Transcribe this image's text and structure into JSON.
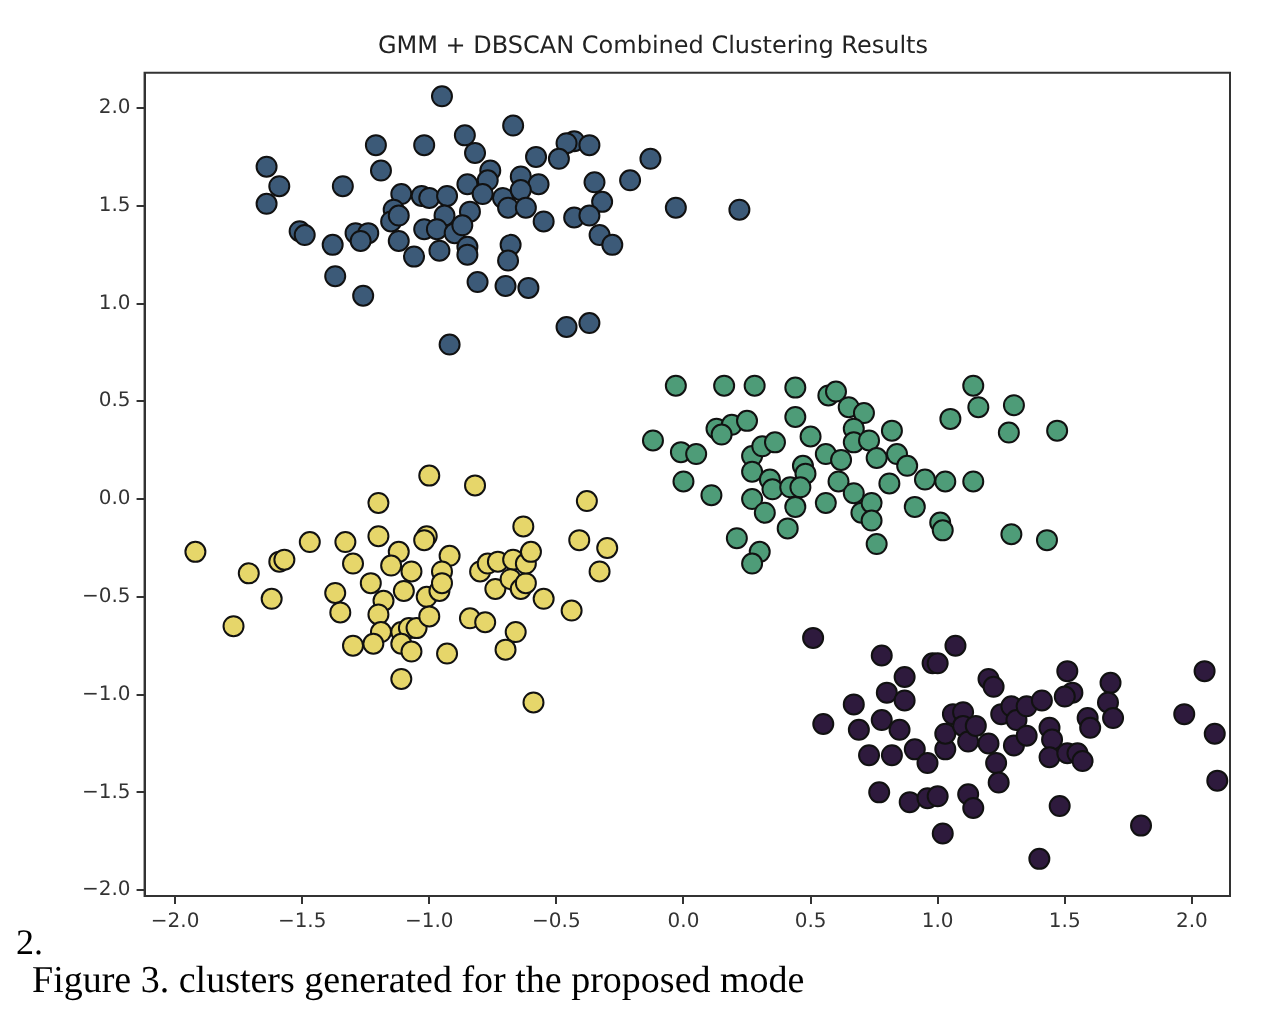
{
  "chart_data": {
    "type": "scatter",
    "title": "GMM + DBSCAN Combined Clustering Results",
    "marker": "circle",
    "grid": false,
    "xlim": [
      -2.12,
      2.15
    ],
    "ylim": [
      -2.03,
      2.18
    ],
    "xticks": [
      {
        "value": -2,
        "label": "−2.0"
      },
      {
        "value": -1.5,
        "label": "−1.5"
      },
      {
        "value": -1,
        "label": "−1.0"
      },
      {
        "value": -0.5,
        "label": "−0.5"
      },
      {
        "value": 0,
        "label": "0.0"
      },
      {
        "value": 0.5,
        "label": "0.5"
      },
      {
        "value": 1,
        "label": "1.0"
      },
      {
        "value": 1.5,
        "label": "1.5"
      },
      {
        "value": 2,
        "label": "2.0"
      }
    ],
    "yticks": [
      {
        "value": -2,
        "label": "−2.0"
      },
      {
        "value": -1.5,
        "label": "−1.5"
      },
      {
        "value": -1,
        "label": "−1.0"
      },
      {
        "value": -0.5,
        "label": "−0.5"
      },
      {
        "value": 0,
        "label": "0.0"
      },
      {
        "value": 0.5,
        "label": "0.5"
      },
      {
        "value": 1,
        "label": "1.0"
      },
      {
        "value": 1.5,
        "label": "1.5"
      },
      {
        "value": 2,
        "label": "2.0"
      }
    ],
    "series": [
      {
        "color": "#2e1a3d",
        "x": [
          0.51,
          0.55,
          0.78,
          0.87,
          0.67,
          0.69,
          0.8,
          0.87,
          0.78,
          0.85,
          0.73,
          0.82,
          0.91,
          0.96,
          0.98,
          1.0,
          1.07,
          0.77,
          0.89,
          0.96,
          1.0,
          1.02,
          1.03,
          1.03,
          1.06,
          1.1,
          1.1,
          1.12,
          1.15,
          1.2,
          1.22,
          1.2,
          1.23,
          1.25,
          1.29,
          1.31,
          1.3,
          1.35,
          1.35,
          1.41,
          1.44,
          1.45,
          1.44,
          1.51,
          1.53,
          1.5,
          1.51,
          1.55,
          1.57,
          1.59,
          1.6,
          1.68,
          1.67,
          1.69,
          1.12,
          1.14,
          1.24,
          1.48,
          1.4,
          1.8,
          1.97,
          2.05,
          2.09,
          2.1
        ],
        "values": [
          -0.71,
          -1.15,
          -0.8,
          -0.91,
          -1.05,
          -1.18,
          -0.99,
          -1.03,
          -1.13,
          -1.18,
          -1.31,
          -1.31,
          -1.28,
          -1.35,
          -0.84,
          -0.84,
          -0.75,
          -1.5,
          -1.55,
          -1.53,
          -1.52,
          -1.71,
          -1.28,
          -1.2,
          -1.1,
          -1.09,
          -1.16,
          -1.24,
          -1.16,
          -0.92,
          -0.96,
          -1.25,
          -1.35,
          -1.1,
          -1.06,
          -1.13,
          -1.26,
          -1.06,
          -1.21,
          -1.03,
          -1.17,
          -1.23,
          -1.32,
          -0.88,
          -0.99,
          -1.01,
          -1.3,
          -1.3,
          -1.34,
          -1.12,
          -1.17,
          -0.94,
          -1.04,
          -1.12,
          -1.51,
          -1.58,
          -1.45,
          -1.57,
          -1.84,
          -1.67,
          -1.1,
          -0.88,
          -1.2,
          -1.44
        ]
      },
      {
        "color": "#3c5a78",
        "x": [
          -0.95,
          -0.67,
          -1.21,
          -1.02,
          -0.86,
          -0.82,
          -0.43,
          -0.37,
          -0.46,
          -1.64,
          -0.13,
          -0.58,
          -0.49,
          -1.19,
          -0.76,
          -1.59,
          -1.34,
          -1.64,
          -0.85,
          -0.77,
          -0.64,
          -0.57,
          -0.35,
          -0.21,
          -1.11,
          -1.03,
          -1.0,
          -0.93,
          -0.79,
          -0.71,
          -0.64,
          -0.32,
          -0.03,
          0.22,
          -1.14,
          -0.69,
          -0.62,
          -0.84,
          -0.94,
          -0.43,
          -0.37,
          -0.55,
          -1.51,
          -1.49,
          -1.38,
          -1.29,
          -1.24,
          -1.27,
          -1.15,
          -1.12,
          -1.12,
          -1.02,
          -0.97,
          -0.9,
          -0.87,
          -0.33,
          -0.28,
          -1.06,
          -0.96,
          -0.85,
          -0.85,
          -0.68,
          -0.69,
          -1.37,
          -1.26,
          -0.81,
          -0.7,
          -0.61,
          -0.46,
          -0.37,
          -0.92
        ],
        "values": [
          2.06,
          1.91,
          1.81,
          1.81,
          1.86,
          1.77,
          1.83,
          1.81,
          1.82,
          1.7,
          1.74,
          1.75,
          1.74,
          1.68,
          1.68,
          1.6,
          1.6,
          1.51,
          1.61,
          1.63,
          1.65,
          1.61,
          1.62,
          1.63,
          1.56,
          1.55,
          1.54,
          1.55,
          1.56,
          1.54,
          1.58,
          1.52,
          1.49,
          1.48,
          1.48,
          1.49,
          1.49,
          1.47,
          1.45,
          1.44,
          1.45,
          1.42,
          1.37,
          1.35,
          1.3,
          1.36,
          1.36,
          1.32,
          1.42,
          1.45,
          1.32,
          1.38,
          1.38,
          1.36,
          1.4,
          1.35,
          1.3,
          1.24,
          1.27,
          1.29,
          1.25,
          1.3,
          1.22,
          1.14,
          1.04,
          1.11,
          1.09,
          1.08,
          0.88,
          0.9,
          0.79
        ]
      },
      {
        "color": "#4e9c78",
        "x": [
          -0.03,
          0.16,
          0.28,
          0.44,
          0.57,
          0.6,
          0.65,
          0.71,
          1.14,
          1.16,
          1.3,
          1.05,
          1.28,
          1.47,
          0.44,
          0.13,
          0.19,
          0.25,
          0.15,
          -0.01,
          0.05,
          0.27,
          0.31,
          0.36,
          0.5,
          0.67,
          0.67,
          0.73,
          0.82,
          0.56,
          0.62,
          0.76,
          0.84,
          0.88,
          0.95,
          1.03,
          1.14,
          0.0,
          0.11,
          0.27,
          0.34,
          0.35,
          0.47,
          0.48,
          0.42,
          0.46,
          0.61,
          0.67,
          0.81,
          0.27,
          0.32,
          0.44,
          0.56,
          0.7,
          0.74,
          0.74,
          0.91,
          1.01,
          1.02,
          0.41,
          0.21,
          0.3,
          0.27,
          0.76,
          1.29,
          1.43,
          -0.12
        ],
        "values": [
          0.58,
          0.58,
          0.58,
          0.57,
          0.53,
          0.55,
          0.47,
          0.44,
          0.58,
          0.47,
          0.48,
          0.41,
          0.34,
          0.35,
          0.42,
          0.36,
          0.38,
          0.4,
          0.33,
          0.24,
          0.23,
          0.22,
          0.27,
          0.29,
          0.32,
          0.36,
          0.29,
          0.3,
          0.35,
          0.23,
          0.2,
          0.21,
          0.23,
          0.17,
          0.1,
          0.09,
          0.09,
          0.09,
          0.02,
          0.14,
          0.1,
          0.05,
          0.17,
          0.13,
          0.06,
          0.06,
          0.09,
          0.03,
          0.08,
          0.0,
          -0.07,
          -0.04,
          -0.02,
          -0.07,
          -0.02,
          -0.11,
          -0.04,
          -0.12,
          -0.16,
          -0.15,
          -0.2,
          -0.27,
          -0.33,
          -0.23,
          -0.18,
          -0.21,
          0.3
        ]
      },
      {
        "color": "#e6d66a",
        "x": [
          -1.92,
          -1.71,
          -1.62,
          -1.77,
          -1.59,
          -1.57,
          -1.47,
          -1.33,
          -1.3,
          -1.37,
          -1.35,
          -1.2,
          -1.0,
          -0.82,
          -1.2,
          -1.12,
          -1.15,
          -1.07,
          -1.01,
          -1.02,
          -0.92,
          -0.95,
          -1.23,
          -1.18,
          -1.1,
          -1.01,
          -0.96,
          -0.95,
          -1.2,
          -1.19,
          -1.11,
          -1.08,
          -1.05,
          -1.0,
          -1.11,
          -1.07,
          -1.3,
          -1.22,
          -0.93,
          -1.11,
          -0.84,
          -0.78,
          -0.8,
          -0.77,
          -0.73,
          -0.67,
          -0.74,
          -0.68,
          -0.64,
          -0.62,
          -0.62,
          -0.6,
          -0.63,
          -0.55,
          -0.44,
          -0.66,
          -0.7,
          -0.38,
          -0.41,
          -0.3,
          -0.33,
          -0.59
        ],
        "values": [
          -0.27,
          -0.38,
          -0.51,
          -0.65,
          -0.32,
          -0.31,
          -0.22,
          -0.22,
          -0.33,
          -0.48,
          -0.58,
          -0.02,
          0.12,
          0.07,
          -0.19,
          -0.27,
          -0.34,
          -0.37,
          -0.19,
          -0.21,
          -0.29,
          -0.37,
          -0.43,
          -0.52,
          -0.47,
          -0.5,
          -0.47,
          -0.43,
          -0.59,
          -0.68,
          -0.68,
          -0.66,
          -0.66,
          -0.6,
          -0.74,
          -0.78,
          -0.75,
          -0.74,
          -0.79,
          -0.92,
          -0.61,
          -0.63,
          -0.37,
          -0.33,
          -0.32,
          -0.31,
          -0.46,
          -0.41,
          -0.46,
          -0.43,
          -0.33,
          -0.27,
          -0.14,
          -0.51,
          -0.57,
          -0.68,
          -0.77,
          -0.01,
          -0.21,
          -0.25,
          -0.37,
          -1.04
        ]
      }
    ],
    "annotations": [
      "2.",
      "Figure 3. clusters generated for the proposed mode"
    ]
  }
}
